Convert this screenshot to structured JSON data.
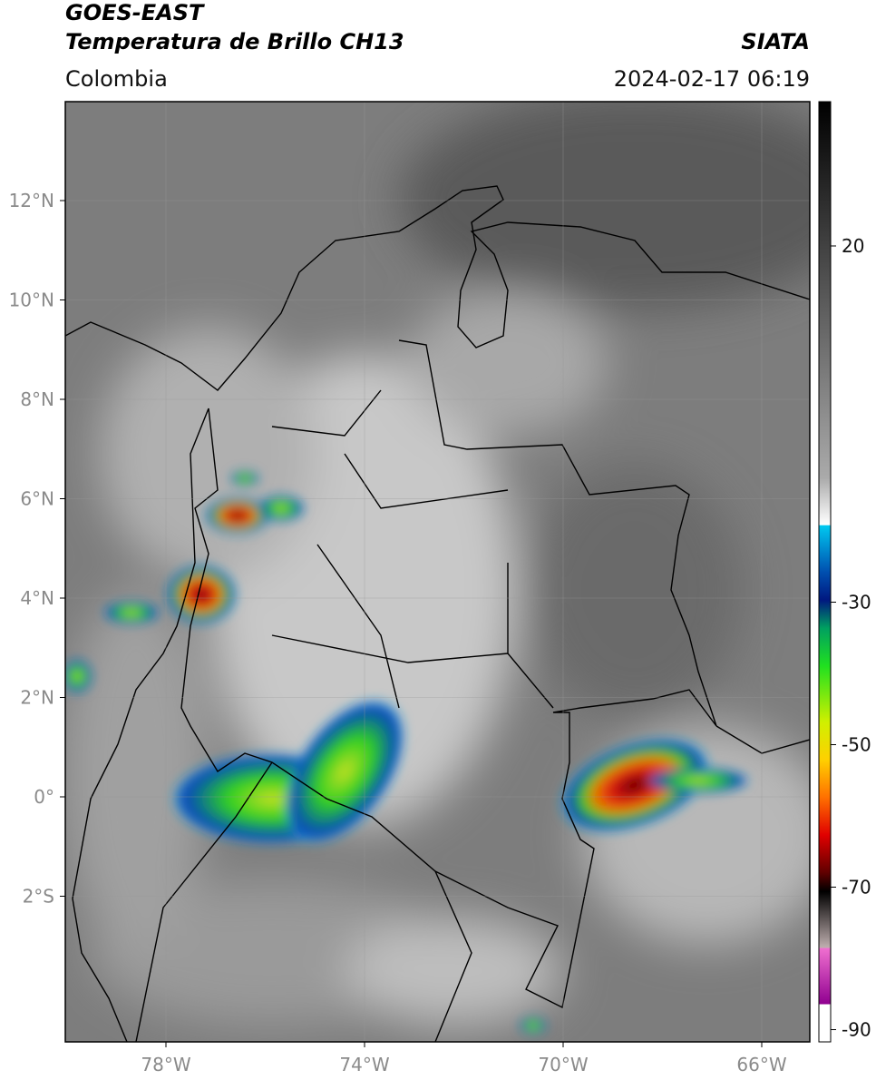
{
  "header": {
    "source": "GOES-EAST",
    "product": "Temperatura de Brillo CH13",
    "agency": "SIATA",
    "region": "Colombia",
    "timestamp": "2024-02-17 06:19"
  },
  "map": {
    "lat_labels": [
      {
        "value": 12,
        "label": "12°N"
      },
      {
        "value": 10,
        "label": "10°N"
      },
      {
        "value": 8,
        "label": "8°N"
      },
      {
        "value": 6,
        "label": "6°N"
      },
      {
        "value": 4,
        "label": "4°N"
      },
      {
        "value": 2,
        "label": "2°N"
      },
      {
        "value": 0,
        "label": "0°"
      },
      {
        "value": -2,
        "label": "2°S"
      }
    ],
    "lon_labels": [
      {
        "value": -78,
        "label": "78°W"
      },
      {
        "value": -74,
        "label": "74°W"
      },
      {
        "value": -70,
        "label": "70°W"
      },
      {
        "value": -66,
        "label": "66°W"
      }
    ]
  },
  "colorbar": {
    "ticks": [
      20,
      -30,
      -50,
      -70,
      -90
    ]
  }
}
